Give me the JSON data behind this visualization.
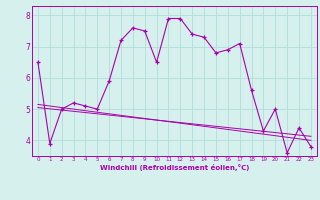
{
  "xlabel": "Windchill (Refroidissement éolien,°C)",
  "bg_color": "#d6f0ee",
  "line_color": "#aa00aa",
  "grid_color": "#b0ddd8",
  "x_hours": [
    0,
    1,
    2,
    3,
    4,
    5,
    6,
    7,
    8,
    9,
    10,
    11,
    12,
    13,
    14,
    15,
    16,
    17,
    18,
    19,
    20,
    21,
    22,
    23
  ],
  "y_main": [
    6.5,
    3.9,
    5.0,
    5.2,
    5.1,
    5.0,
    5.9,
    7.2,
    7.6,
    7.5,
    6.5,
    7.9,
    7.9,
    7.4,
    7.3,
    6.8,
    6.9,
    7.1,
    5.6,
    4.3,
    5.0,
    3.6,
    4.4,
    3.8
  ],
  "y_smooth1": [
    5.05,
    5.01,
    4.97,
    4.93,
    4.89,
    4.85,
    4.81,
    4.77,
    4.73,
    4.69,
    4.65,
    4.61,
    4.57,
    4.53,
    4.49,
    4.45,
    4.41,
    4.37,
    4.33,
    4.29,
    4.25,
    4.21,
    4.17,
    4.13
  ],
  "y_smooth2": [
    5.15,
    5.1,
    5.05,
    5.0,
    4.95,
    4.9,
    4.85,
    4.8,
    4.75,
    4.7,
    4.65,
    4.6,
    4.55,
    4.5,
    4.45,
    4.4,
    4.35,
    4.3,
    4.25,
    4.2,
    4.15,
    4.1,
    4.05,
    4.0
  ],
  "xlim": [
    -0.5,
    23.5
  ],
  "ylim": [
    3.5,
    8.3
  ],
  "yticks": [
    4,
    5,
    6,
    7,
    8
  ],
  "xticks": [
    0,
    1,
    2,
    3,
    4,
    5,
    6,
    7,
    8,
    9,
    10,
    11,
    12,
    13,
    14,
    15,
    16,
    17,
    18,
    19,
    20,
    21,
    22,
    23
  ]
}
